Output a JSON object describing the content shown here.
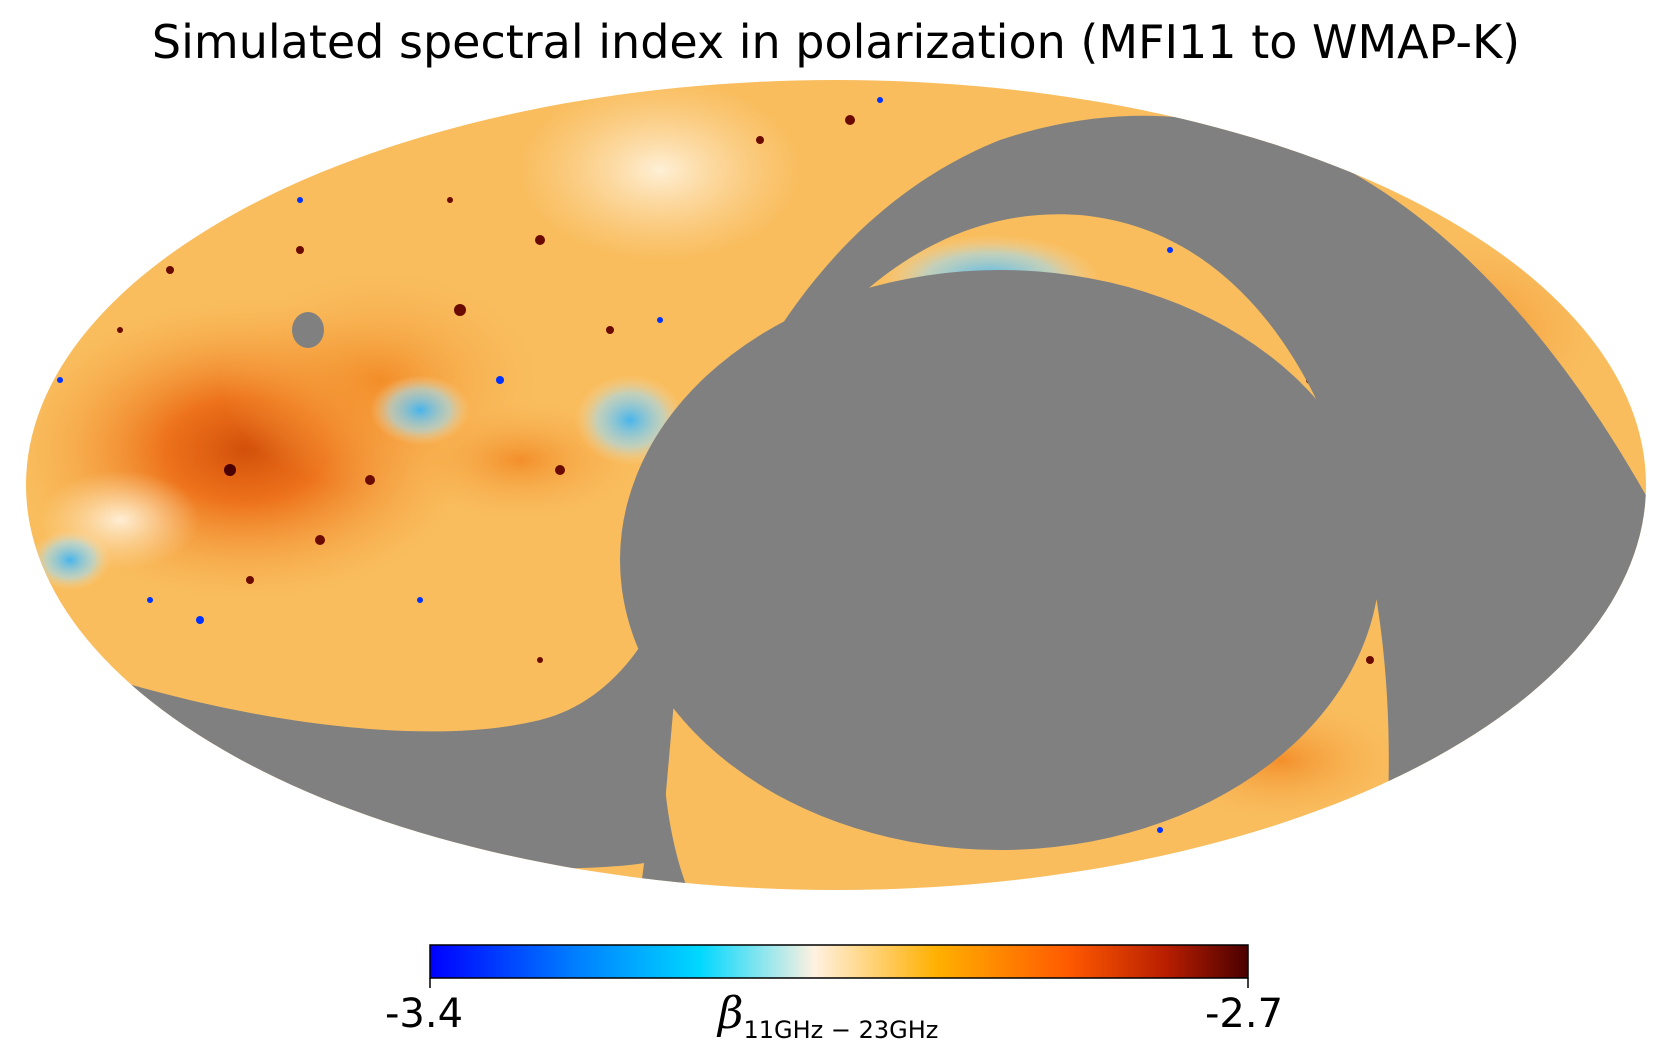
{
  "chart_data": {
    "type": "heatmap",
    "projection": "mollweide",
    "title": "Simulated spectral index in polarization (MFI11 to WMAP-K)",
    "colorbar": {
      "min_label": "-3.4",
      "max_label": "-2.7",
      "vmin": -3.4,
      "vmax": -2.7,
      "symbol": "β",
      "subscript": "11GHz − 23GHz",
      "orientation": "horizontal",
      "placement": "bottom",
      "colormap": [
        "#0000ff",
        "#0080ff",
        "#00d8ff",
        "#fff1e0",
        "#ffb000",
        "#ff5a00",
        "#b81e00",
        "#4a0000"
      ]
    },
    "masked_color": "#808080",
    "dominant_value_range": [
      -2.95,
      -2.85
    ]
  }
}
